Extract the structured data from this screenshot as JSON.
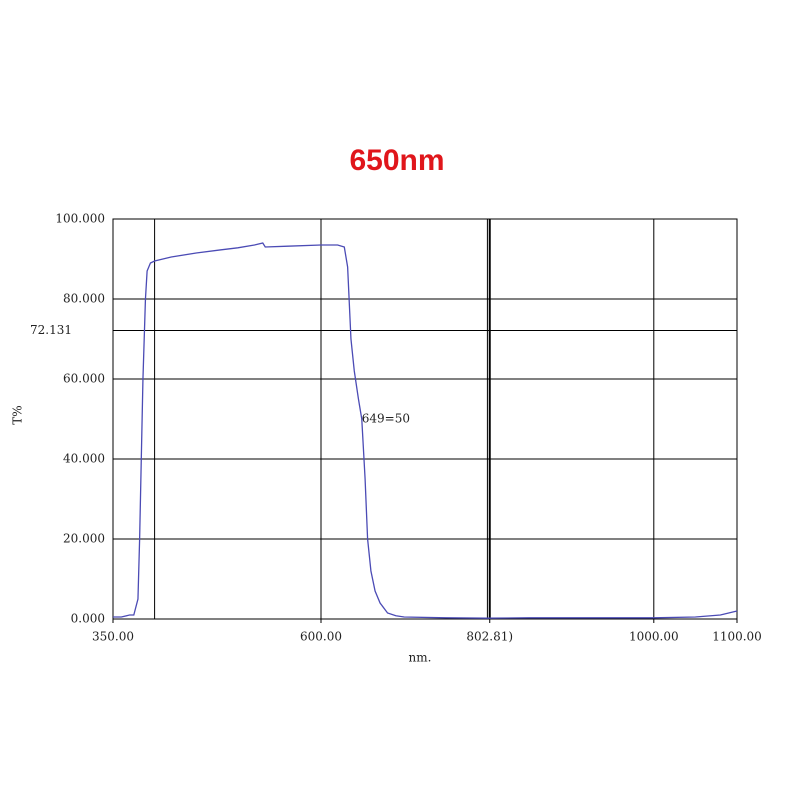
{
  "chart_data": {
    "type": "line",
    "title": "650nm",
    "x_label": "nm.",
    "y_label": "T%",
    "xlim": [
      350,
      1100
    ],
    "ylim": [
      0,
      100
    ],
    "xticks": [
      {
        "value": 350,
        "label": "350.00"
      },
      {
        "value": 600,
        "label": "600.00"
      },
      {
        "value": 802.81,
        "label": "802.81)"
      },
      {
        "value": 1000,
        "label": "1000.00"
      },
      {
        "value": 1100,
        "label": "1100.00"
      }
    ],
    "xgrid": [
      400,
      600,
      800,
      1000
    ],
    "yticks": [
      {
        "value": 0,
        "label": "0.000"
      },
      {
        "value": 20,
        "label": "20.000"
      },
      {
        "value": 40,
        "label": "40.000"
      },
      {
        "value": 60,
        "label": "60.000"
      },
      {
        "value": 80,
        "label": "80.000"
      },
      {
        "value": 100,
        "label": "100.000"
      }
    ],
    "hline": {
      "value": 72.131,
      "label": "72.131"
    },
    "annotation": {
      "x": 649,
      "y": 50,
      "label": "649=50"
    },
    "grid": true,
    "series": [
      {
        "color": "#4b4bb5",
        "x": [
          350,
          360,
          370,
          375,
          380,
          382,
          386,
          389,
          391,
          395,
          400,
          420,
          450,
          480,
          500,
          520,
          530,
          533,
          560,
          600,
          620,
          628,
          632,
          636,
          640,
          645,
          649,
          653,
          656,
          660,
          665,
          671,
          680,
          690,
          700,
          750,
          800,
          850,
          900,
          950,
          1000,
          1050,
          1080,
          1100
        ],
        "values": [
          0.5,
          0.5,
          1,
          1,
          5,
          20,
          60,
          80,
          87,
          89,
          89.5,
          90.5,
          91.5,
          92.3,
          92.8,
          93.5,
          94,
          93,
          93.2,
          93.5,
          93.5,
          93,
          88,
          70,
          62,
          55,
          50,
          35,
          20,
          12,
          7,
          4,
          1.5,
          0.8,
          0.5,
          0.3,
          0.2,
          0.3,
          0.3,
          0.3,
          0.3,
          0.5,
          1,
          2
        ]
      }
    ]
  }
}
